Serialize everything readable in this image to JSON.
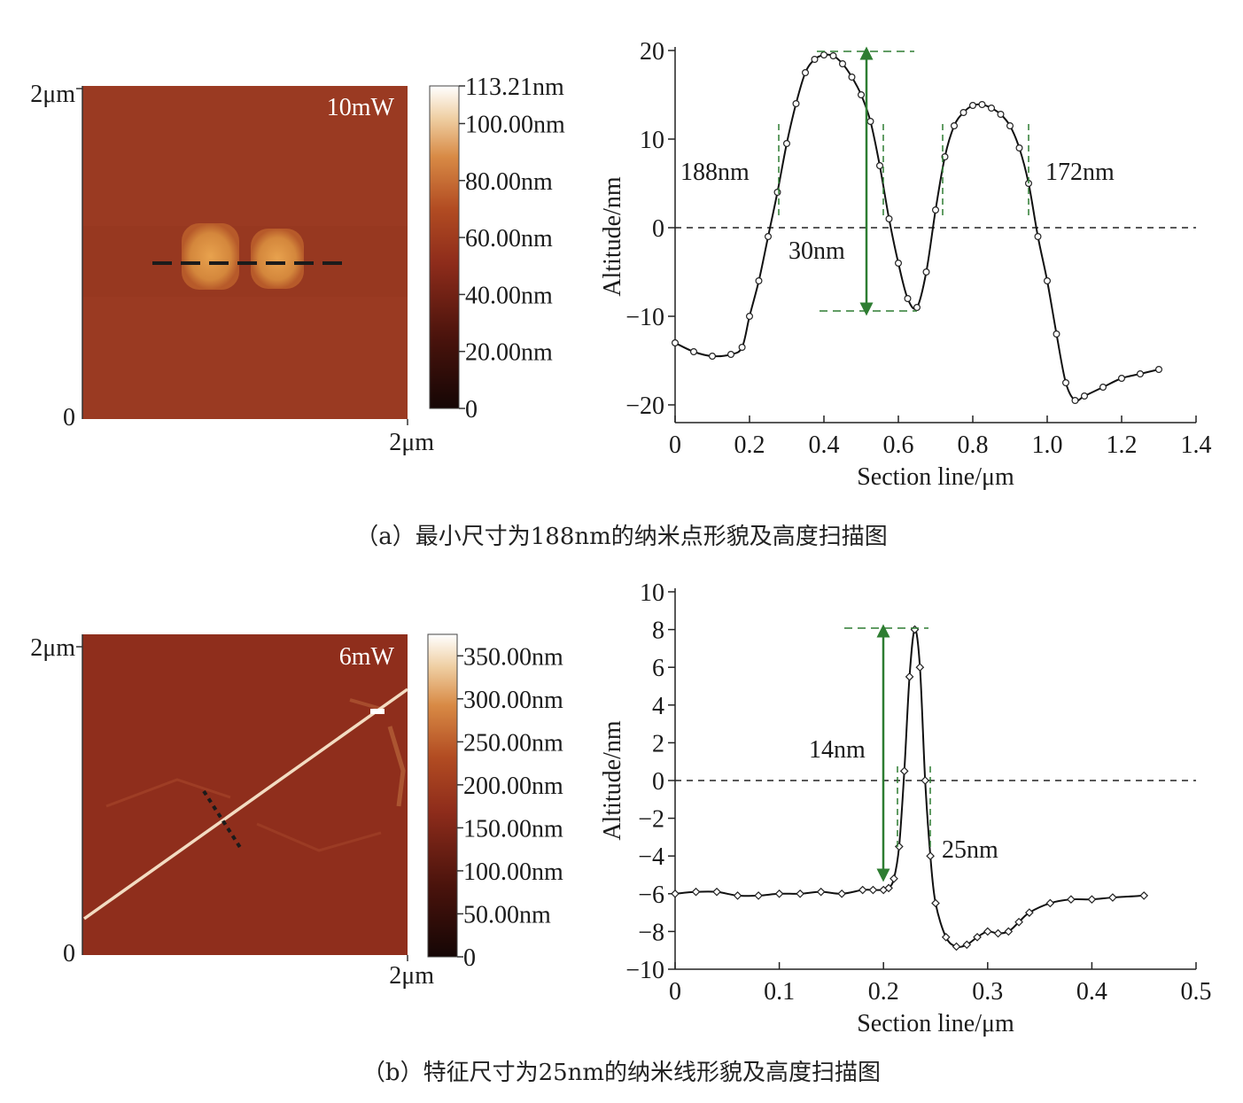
{
  "figure_a": {
    "caption": "（a）最小尺寸为188nm的纳米点形貌及高度扫描图",
    "afm": {
      "power_label": "10mW",
      "axis_top_label": "2μm",
      "axis_origin_label": "0",
      "axis_right_label": "2μm",
      "colorbar_ticks": [
        "113.21nm",
        "100.00nm",
        "80.00nm",
        "60.00nm",
        "40.00nm",
        "20.00nm",
        "0"
      ],
      "colorbar_range_nm": [
        0,
        113.21
      ],
      "background_color": "#9a3a22"
    },
    "profile": {
      "annotations": {
        "left_width": "188nm",
        "right_width": "172nm",
        "depth": "30nm"
      },
      "annotation_color": "#2e7d32"
    }
  },
  "figure_b": {
    "caption": "（b）特征尺寸为25nm的纳米线形貌及高度扫描图",
    "afm": {
      "power_label": "6mW",
      "axis_top_label": "2μm",
      "axis_origin_label": "0",
      "axis_right_label": "2μm",
      "colorbar_ticks": [
        "350.00nm",
        "300.00nm",
        "250.00nm",
        "200.00nm",
        "150.00nm",
        "100.00nm",
        "50.00nm",
        "0"
      ],
      "colorbar_range_nm": [
        0,
        375
      ],
      "background_color": "#8f2e1c"
    },
    "profile": {
      "annotations": {
        "height": "14nm",
        "width": "25nm"
      },
      "annotation_color": "#2e7d32"
    }
  },
  "chart_data": [
    {
      "type": "line",
      "xlabel": "Section line/μm",
      "ylabel": "Altitude/nm",
      "xlim": [
        0,
        1.4
      ],
      "ylim": [
        -22,
        20
      ],
      "xticks": [
        "0",
        "0.2",
        "0.4",
        "0.6",
        "0.8",
        "1.0",
        "1.2",
        "1.4"
      ],
      "yticks": [
        "-20",
        "-10",
        "0",
        "10",
        "20"
      ],
      "marker": "circle",
      "zero_line": true,
      "x": [
        0,
        0.05,
        0.1,
        0.15,
        0.18,
        0.2,
        0.225,
        0.25,
        0.275,
        0.3,
        0.325,
        0.35,
        0.375,
        0.4,
        0.425,
        0.45,
        0.475,
        0.5,
        0.525,
        0.55,
        0.575,
        0.6,
        0.625,
        0.65,
        0.675,
        0.7,
        0.725,
        0.75,
        0.775,
        0.8,
        0.825,
        0.85,
        0.875,
        0.9,
        0.925,
        0.95,
        0.975,
        1.0,
        1.025,
        1.05,
        1.075,
        1.1,
        1.15,
        1.2,
        1.25,
        1.3
      ],
      "y": [
        -13,
        -14,
        -14.5,
        -14.3,
        -13.5,
        -10,
        -6,
        -1,
        4,
        9.5,
        14,
        17.5,
        19,
        19.5,
        19.4,
        18.5,
        17,
        15,
        12,
        7,
        1,
        -4,
        -8,
        -9,
        -5,
        2,
        8,
        11.5,
        13,
        13.8,
        13.9,
        13.5,
        12.8,
        11.5,
        9,
        5,
        -1,
        -6,
        -12,
        -17.5,
        -19.5,
        -19,
        -18,
        -17,
        -16.5,
        -16
      ]
    },
    {
      "type": "line",
      "xlabel": "Section line/μm",
      "ylabel": "Altitude/nm",
      "xlim": [
        0,
        0.5
      ],
      "ylim": [
        -10,
        10
      ],
      "xticks": [
        "0",
        "0.1",
        "0.2",
        "0.3",
        "0.4",
        "0.5"
      ],
      "yticks": [
        "-10",
        "-8",
        "-6",
        "-4",
        "-2",
        "0",
        "2",
        "4",
        "6",
        "8",
        "10"
      ],
      "marker": "diamond",
      "zero_line": true,
      "x": [
        0,
        0.02,
        0.04,
        0.06,
        0.08,
        0.1,
        0.12,
        0.14,
        0.16,
        0.18,
        0.19,
        0.2,
        0.205,
        0.21,
        0.215,
        0.22,
        0.225,
        0.23,
        0.235,
        0.24,
        0.245,
        0.25,
        0.26,
        0.27,
        0.28,
        0.29,
        0.3,
        0.31,
        0.32,
        0.33,
        0.34,
        0.36,
        0.38,
        0.4,
        0.42,
        0.45
      ],
      "y": [
        -6,
        -5.9,
        -5.9,
        -6.1,
        -6.1,
        -6,
        -6,
        -5.9,
        -6,
        -5.8,
        -5.8,
        -5.8,
        -5.7,
        -5.2,
        -3.5,
        0.5,
        5.5,
        8,
        6,
        0,
        -4,
        -6.5,
        -8.3,
        -8.8,
        -8.7,
        -8.3,
        -8,
        -8.1,
        -8,
        -7.5,
        -7,
        -6.5,
        -6.3,
        -6.3,
        -6.2,
        -6.1
      ]
    }
  ]
}
